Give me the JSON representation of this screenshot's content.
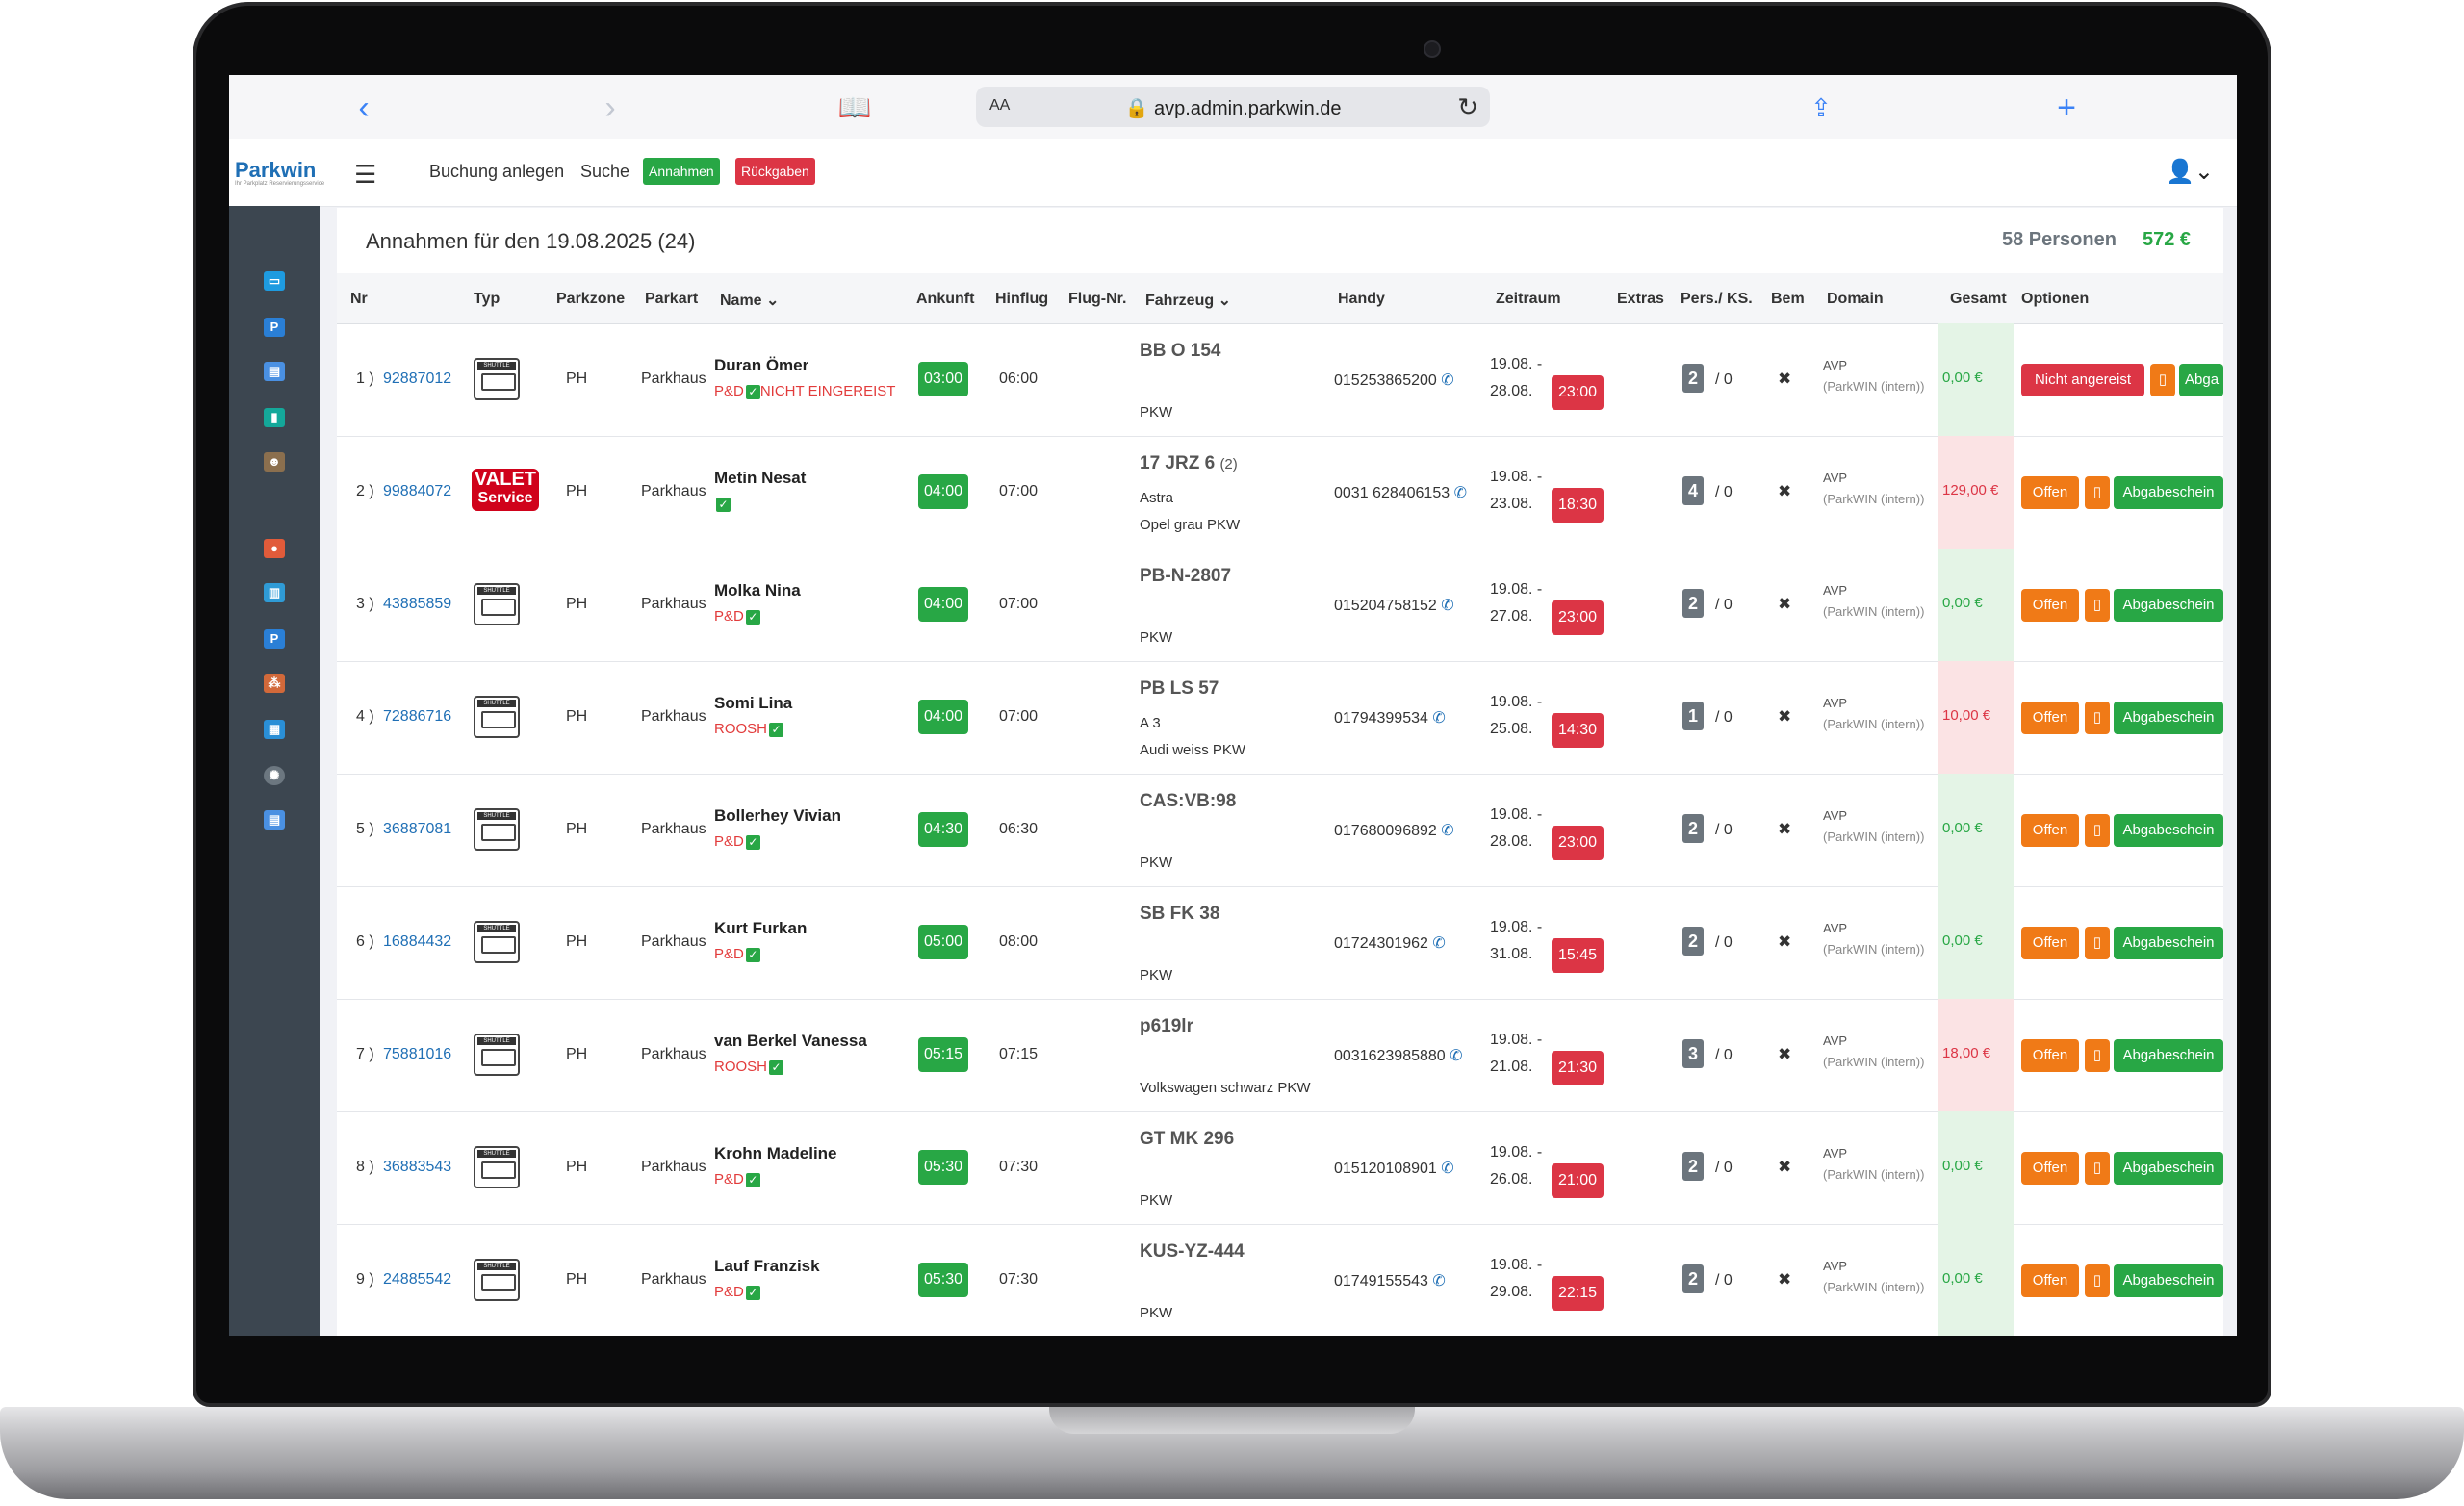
{
  "browser": {
    "url": "avp.admin.parkwin.de",
    "aa": "AA"
  },
  "app": {
    "logo": "Parkwin",
    "logo_sub": "Ihr Parkplatz Reservierungsservice",
    "nav": {
      "buchung": "Buchung anlegen",
      "suche": "Suche",
      "annahmen": "Annahmen",
      "rueckgaben": "Rückgaben"
    }
  },
  "header": {
    "title": "Annahmen für den 19.08.2025 (24)",
    "persons": "58 Personen",
    "total": "572 €"
  },
  "columns": [
    "Nr",
    "Typ",
    "Parkzone",
    "Parkart",
    "Name",
    "Ankunft",
    "Hinflug",
    "Flug-Nr.",
    "Fahrzeug",
    "Handy",
    "Zeitraum",
    "Extras",
    "Pers./ KS.",
    "Bem",
    "Domain",
    "Gesamt",
    "Optionen"
  ],
  "labels": {
    "nicht": "Nicht angereist",
    "offen": "Offen",
    "abga": "Abgabeschein",
    "abga_short": "Abga",
    "domain1": "AVP",
    "domain2": "(ParkWIN (intern))",
    "shuttle": "SHUTTLE",
    "valet1": "VALET",
    "valet2": "Service",
    "ks": "/ 0",
    "bem": "✖"
  },
  "rows": [
    {
      "idx": "1 )",
      "nr": "92887012",
      "typ": "shuttle",
      "zone": "PH",
      "art": "Parkhaus",
      "name": "Duran Ömer",
      "tag": "P&D",
      "tag2": "NICHT EINGEREIST",
      "ankunft": "03:00",
      "hinflug": "06:00",
      "plate": "BB O 154",
      "plate_extra": "",
      "car1": "",
      "car2": "PKW",
      "handy": "015253865200",
      "z1": "19.08. -",
      "z2": "28.08.",
      "ztime": "23:00",
      "pers": "2",
      "gesamt": "0,00 €",
      "paid": true,
      "status": "nicht"
    },
    {
      "idx": "2 )",
      "nr": "99884072",
      "typ": "valet",
      "zone": "PH",
      "art": "Parkhaus",
      "name": "Metin Nesat",
      "tag": "",
      "tag2": "",
      "ankunft": "04:00",
      "hinflug": "07:00",
      "plate": "17 JRZ 6",
      "plate_extra": "(2)",
      "car1": "Astra",
      "car2": "Opel grau PKW",
      "handy": "0031 628406153",
      "z1": "19.08. -",
      "z2": "23.08.",
      "ztime": "18:30",
      "pers": "4",
      "gesamt": "129,00 €",
      "paid": false,
      "status": "offen"
    },
    {
      "idx": "3 )",
      "nr": "43885859",
      "typ": "shuttle",
      "zone": "PH",
      "art": "Parkhaus",
      "name": "Molka Nina",
      "tag": "P&D",
      "tag2": "",
      "ankunft": "04:00",
      "hinflug": "07:00",
      "plate": "PB-N-2807",
      "plate_extra": "",
      "car1": "",
      "car2": "PKW",
      "handy": "015204758152",
      "z1": "19.08. -",
      "z2": "27.08.",
      "ztime": "23:00",
      "pers": "2",
      "gesamt": "0,00 €",
      "paid": true,
      "status": "offen"
    },
    {
      "idx": "4 )",
      "nr": "72886716",
      "typ": "shuttle",
      "zone": "PH",
      "art": "Parkhaus",
      "name": "Somi Lina",
      "tag": "ROOSH",
      "tag2": "",
      "ankunft": "04:00",
      "hinflug": "07:00",
      "plate": "PB LS 57",
      "plate_extra": "",
      "car1": "A 3",
      "car2": "Audi weiss PKW",
      "handy": "01794399534",
      "z1": "19.08. -",
      "z2": "25.08.",
      "ztime": "14:30",
      "pers": "1",
      "gesamt": "10,00 €",
      "paid": false,
      "status": "offen"
    },
    {
      "idx": "5 )",
      "nr": "36887081",
      "typ": "shuttle",
      "zone": "PH",
      "art": "Parkhaus",
      "name": "Bollerhey Vivian",
      "tag": "P&D",
      "tag2": "",
      "ankunft": "04:30",
      "hinflug": "06:30",
      "plate": "CAS:VB:98",
      "plate_extra": "",
      "car1": "",
      "car2": "PKW",
      "handy": "017680096892",
      "z1": "19.08. -",
      "z2": "28.08.",
      "ztime": "23:00",
      "pers": "2",
      "gesamt": "0,00 €",
      "paid": true,
      "status": "offen"
    },
    {
      "idx": "6 )",
      "nr": "16884432",
      "typ": "shuttle",
      "zone": "PH",
      "art": "Parkhaus",
      "name": "Kurt Furkan",
      "tag": "P&D",
      "tag2": "",
      "ankunft": "05:00",
      "hinflug": "08:00",
      "plate": "SB FK 38",
      "plate_extra": "",
      "car1": "",
      "car2": "PKW",
      "handy": "01724301962",
      "z1": "19.08. -",
      "z2": "31.08.",
      "ztime": "15:45",
      "pers": "2",
      "gesamt": "0,00 €",
      "paid": true,
      "status": "offen"
    },
    {
      "idx": "7 )",
      "nr": "75881016",
      "typ": "shuttle",
      "zone": "PH",
      "art": "Parkhaus",
      "name": "van Berkel Vanessa",
      "tag": "ROOSH",
      "tag2": "",
      "ankunft": "05:15",
      "hinflug": "07:15",
      "plate": "p619lr",
      "plate_extra": "",
      "car1": "",
      "car2": "Volkswagen schwarz PKW",
      "handy": "0031623985880",
      "z1": "19.08. -",
      "z2": "21.08.",
      "ztime": "21:30",
      "pers": "3",
      "gesamt": "18,00 €",
      "paid": false,
      "status": "offen"
    },
    {
      "idx": "8 )",
      "nr": "36883543",
      "typ": "shuttle",
      "zone": "PH",
      "art": "Parkhaus",
      "name": "Krohn Madeline",
      "tag": "P&D",
      "tag2": "",
      "ankunft": "05:30",
      "hinflug": "07:30",
      "plate": "GT MK 296",
      "plate_extra": "",
      "car1": "",
      "car2": "PKW",
      "handy": "015120108901",
      "z1": "19.08. -",
      "z2": "26.08.",
      "ztime": "21:00",
      "pers": "2",
      "gesamt": "0,00 €",
      "paid": true,
      "status": "offen"
    },
    {
      "idx": "9 )",
      "nr": "24885542",
      "typ": "shuttle",
      "zone": "PH",
      "art": "Parkhaus",
      "name": "Lauf Franzisk",
      "tag": "P&D",
      "tag2": "",
      "ankunft": "05:30",
      "hinflug": "07:30",
      "plate": "KUS-YZ-444",
      "plate_extra": "",
      "car1": "",
      "car2": "PKW",
      "handy": "01749155543",
      "z1": "19.08. -",
      "z2": "29.08.",
      "ztime": "22:15",
      "pers": "2",
      "gesamt": "0,00 €",
      "paid": true,
      "status": "offen"
    }
  ]
}
